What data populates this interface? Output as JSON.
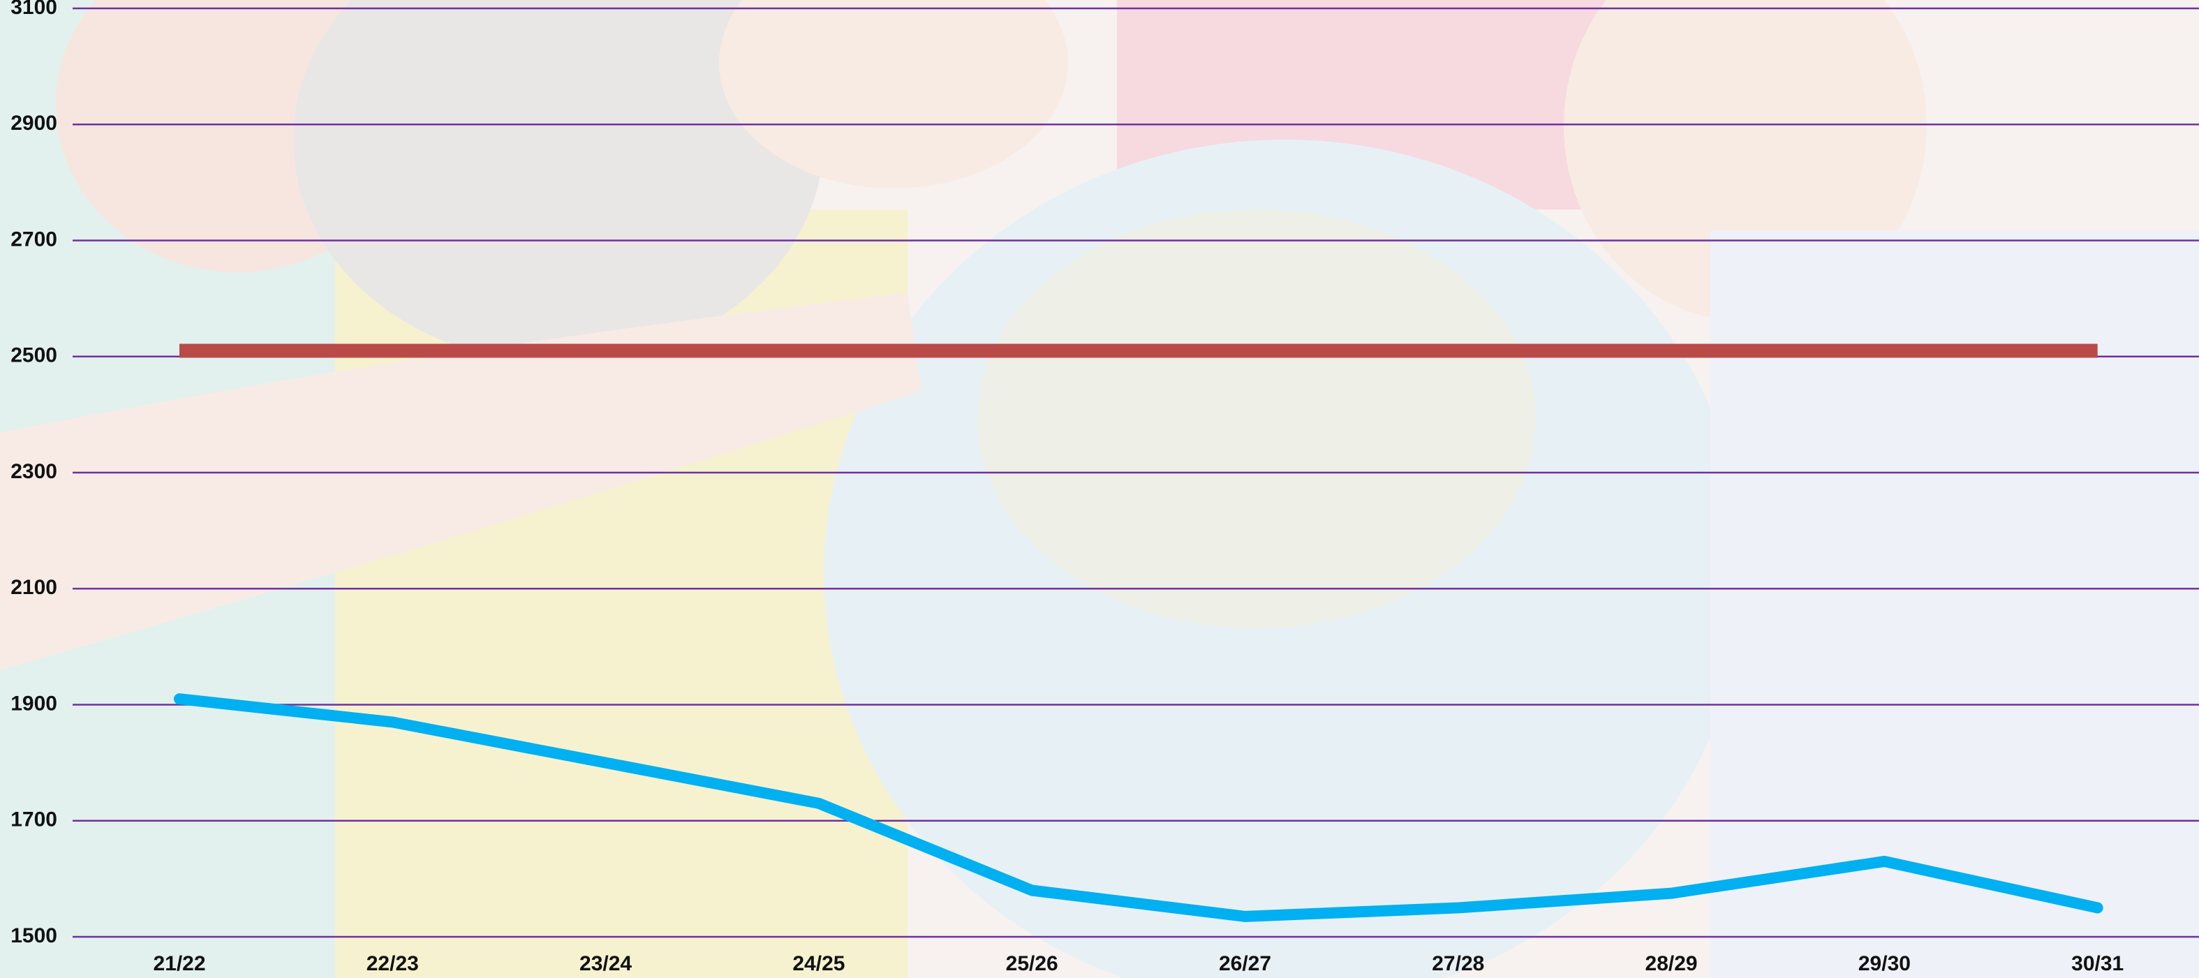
{
  "chart_data": {
    "type": "line",
    "categories": [
      "21/22",
      "22/23",
      "23/24",
      "24/25",
      "25/26",
      "26/27",
      "27/28",
      "28/29",
      "29/30",
      "30/31"
    ],
    "series": [
      {
        "color": "#00b0f0",
        "values": [
          1910,
          1870,
          1800,
          1730,
          1580,
          1535,
          1550,
          1575,
          1630,
          1550
        ]
      },
      {
        "color": "#b94a48",
        "values": [
          2510,
          2510,
          2510,
          2510,
          2510,
          2510,
          2510,
          2510,
          2510,
          2510
        ]
      }
    ],
    "ylim": [
      1500,
      3100
    ],
    "yticks": [
      1500,
      1700,
      1900,
      2100,
      2300,
      2500,
      2700,
      2900,
      3100
    ],
    "grid": true,
    "grid_color": "#7030a0"
  }
}
